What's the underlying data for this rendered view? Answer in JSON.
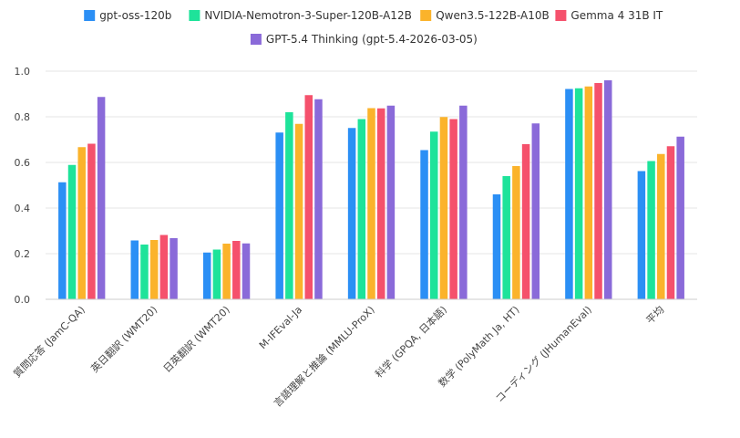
{
  "chart_data": {
    "type": "bar",
    "title": "",
    "xlabel": "",
    "ylabel": "",
    "ylim": [
      0,
      1.0
    ],
    "yticks": [
      0.0,
      0.2,
      0.4,
      0.6,
      0.8,
      1.0
    ],
    "ytick_labels": [
      "0.0",
      "0.2",
      "0.4",
      "0.6",
      "0.8",
      "1.0"
    ],
    "grid": true,
    "legend_position": "top",
    "categories": [
      "質問応答 (JamC-QA)",
      "英日翻訳 (WMT20)",
      "日英翻訳 (WMT20)",
      "M-IFEval-Ja",
      "言語理解と推論 (MMLU-ProX)",
      "科学 (GPQA, 日本語)",
      "数学 (PolyMath Ja, HT)",
      "コーディング (JHumanEval)",
      "平均"
    ],
    "series": [
      {
        "name": "gpt-oss-120b",
        "color": "#2b8ff5",
        "values": [
          0.513,
          0.258,
          0.205,
          0.731,
          0.751,
          0.654,
          0.46,
          0.922,
          0.562
        ]
      },
      {
        "name": "NVIDIA-Nemotron-3-Super-120B-A12B",
        "color": "#1ee39a",
        "values": [
          0.589,
          0.24,
          0.218,
          0.82,
          0.79,
          0.735,
          0.54,
          0.925,
          0.606
        ]
      },
      {
        "name": "Qwen3.5-122B-A10B",
        "color": "#fbb32b",
        "values": [
          0.667,
          0.26,
          0.244,
          0.769,
          0.838,
          0.799,
          0.584,
          0.933,
          0.637
        ]
      },
      {
        "name": "Gemma 4 31B IT",
        "color": "#f5516c",
        "values": [
          0.682,
          0.282,
          0.256,
          0.895,
          0.837,
          0.79,
          0.68,
          0.948,
          0.671
        ]
      },
      {
        "name": "GPT-5.4 Thinking (gpt-5.4-2026-03-05)",
        "color": "#8a6ad9",
        "values": [
          0.887,
          0.268,
          0.245,
          0.877,
          0.849,
          0.849,
          0.771,
          0.96,
          0.713
        ]
      }
    ]
  }
}
